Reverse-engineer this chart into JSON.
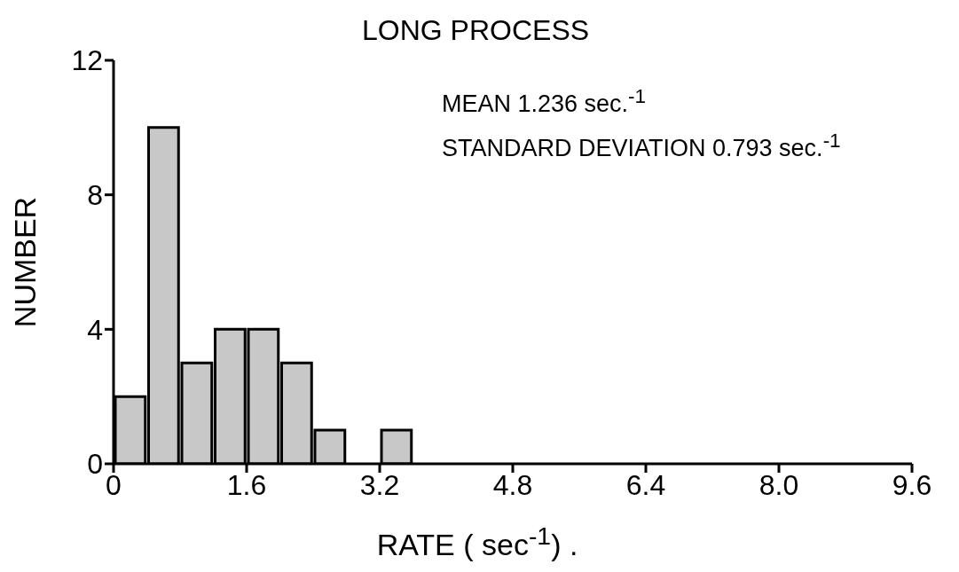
{
  "chart_data": {
    "type": "histogram",
    "title": "LONG PROCESS",
    "xlabel": "RATE ( sec$^{-1}$) .",
    "ylabel": "NUMBER",
    "annotations": [
      "MEAN 1.236 sec.$^{-1}$",
      "STANDARD DEVIATION 0.793 sec.$^{-1}$"
    ],
    "bins": [
      0,
      0.4,
      0.8,
      1.2,
      1.6,
      2.0,
      2.4,
      2.8,
      3.2,
      3.6
    ],
    "values": [
      2,
      10,
      3,
      4,
      4,
      3,
      1,
      0,
      1
    ],
    "color": "#c8c8c8",
    "xlim": [
      0,
      9.6
    ],
    "xticks": [
      0,
      1.6,
      3.2,
      4.8,
      {
        "value": 6.4,
        "label": "6.4"
      },
      {
        "value": 8,
        "label": "8.0"
      },
      9.6
    ],
    "ylim": [
      0,
      12
    ],
    "yticks": [
      0,
      4,
      8,
      12
    ],
    "grid": false,
    "legend": false
  }
}
